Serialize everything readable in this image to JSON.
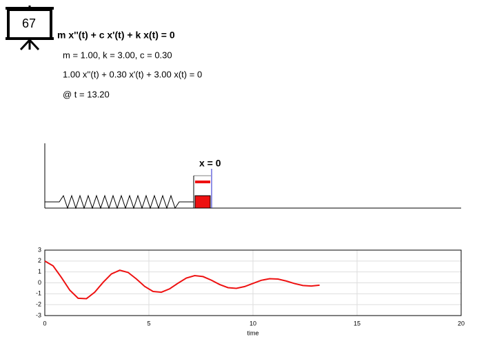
{
  "badge": "67",
  "equation": "m x''(t) + c x'(t) + k x(t) = 0",
  "params": "m = 1.00, k = 3.00, c = 0.30",
  "instance": "1.00 x''(t) + 0.30 x'(t) + 3.00 x(t) = 0",
  "time": "@ t = 13.20",
  "mass_label": "x = 0",
  "chart_data": {
    "type": "line",
    "xlabel": "time",
    "x": [
      0,
      0.4,
      0.8,
      1.2,
      1.6,
      2.0,
      2.4,
      2.8,
      3.2,
      3.6,
      4.0,
      4.4,
      4.8,
      5.2,
      5.6,
      6.0,
      6.4,
      6.8,
      7.2,
      7.6,
      8.0,
      8.4,
      8.8,
      9.2,
      9.6,
      10.0,
      10.4,
      10.8,
      11.2,
      11.6,
      12.0,
      12.4,
      12.8,
      13.2
    ],
    "series": [
      {
        "color": "#ee1111",
        "values": [
          2.0,
          1.556,
          0.488,
          -0.673,
          -1.411,
          -1.451,
          -0.857,
          0.043,
          0.819,
          1.155,
          0.954,
          0.354,
          -0.328,
          -0.79,
          -0.857,
          -0.545,
          -0.03,
          0.438,
          0.664,
          0.575,
          0.246,
          -0.153,
          -0.44,
          -0.504,
          -0.341,
          -0.049,
          0.232,
          0.38,
          0.346,
          0.166,
          -0.066,
          -0.243,
          -0.294,
          -0.212
        ]
      }
    ],
    "xlim": [
      0,
      20
    ],
    "ylim": [
      -3,
      3
    ],
    "xticks": [
      0,
      5,
      10,
      15,
      20
    ],
    "yticks": [
      -3,
      -2,
      -1,
      0,
      1,
      2,
      3
    ],
    "grid": true
  }
}
